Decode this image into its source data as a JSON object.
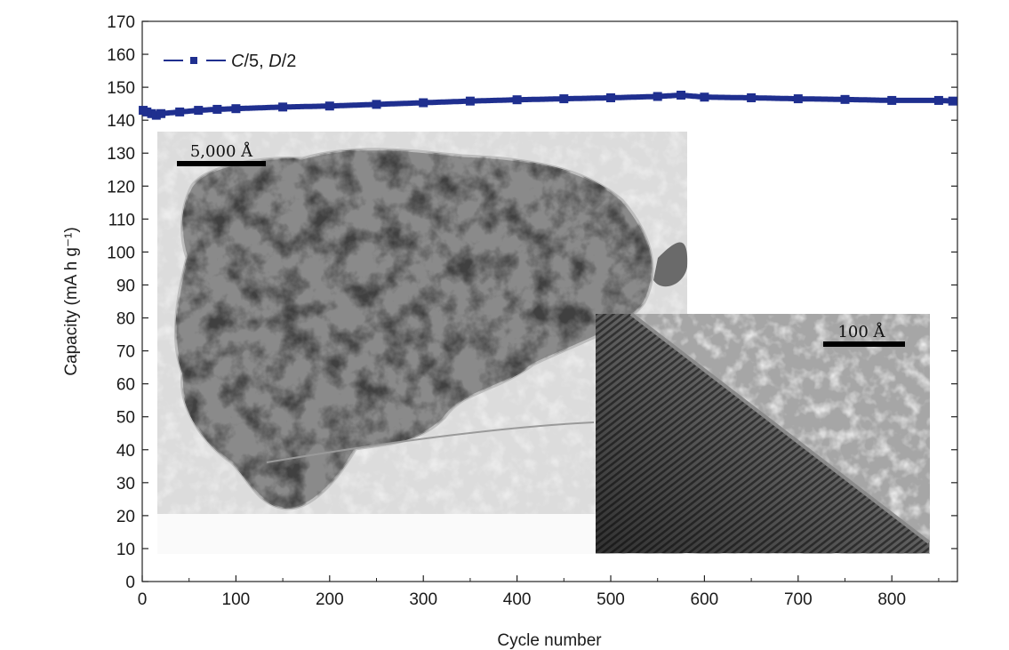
{
  "chart_data": {
    "type": "scatter",
    "xlabel": "Cycle number",
    "ylabel": "Capacity (mA h g⁻¹)",
    "xlim": [
      0,
      870
    ],
    "ylim": [
      0,
      170
    ],
    "xticks": [
      0,
      100,
      200,
      300,
      400,
      500,
      600,
      700,
      800
    ],
    "yticks": [
      0,
      10,
      20,
      30,
      40,
      50,
      60,
      70,
      80,
      90,
      100,
      110,
      120,
      130,
      140,
      150,
      160,
      170
    ],
    "legend_position": "top-left",
    "grid": false,
    "series": [
      {
        "name": "C/5, D/2",
        "color": "#1f2f8f",
        "marker": "square",
        "x": [
          1,
          5,
          10,
          15,
          20,
          40,
          60,
          80,
          100,
          150,
          200,
          250,
          300,
          350,
          400,
          450,
          500,
          550,
          575,
          600,
          650,
          700,
          750,
          800,
          850,
          865
        ],
        "y": [
          143,
          142.5,
          142,
          141.5,
          142,
          142.5,
          143,
          143.3,
          143.5,
          144,
          144.3,
          144.8,
          145.3,
          145.8,
          146.2,
          146.5,
          146.8,
          147.2,
          147.6,
          147,
          146.8,
          146.5,
          146.3,
          146,
          146,
          145.8
        ]
      }
    ],
    "insets": [
      {
        "name": "tem-particle",
        "scale_bar_label": "5,000 Å"
      },
      {
        "name": "hrtem-lattice",
        "scale_bar_label": "100 Å"
      }
    ],
    "legend_label_parts": [
      "C",
      "/5, ",
      "D",
      "/2"
    ]
  }
}
